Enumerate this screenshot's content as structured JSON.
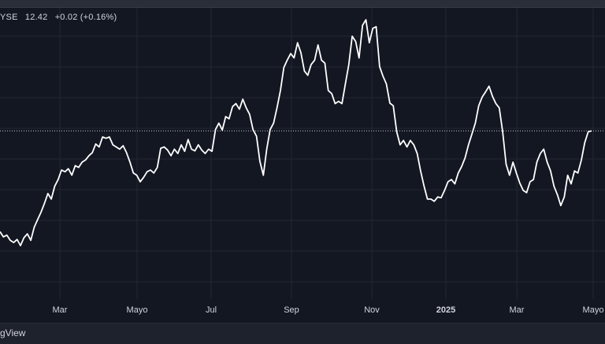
{
  "legend": {
    "exchange": "YSE",
    "price": "12.42",
    "change": "+0.02 (+0.16%)"
  },
  "brand": "gView",
  "chart_data": {
    "type": "line",
    "x_tick_labels": [
      "Mar",
      "Mayo",
      "Jul",
      "Sep",
      "Nov",
      "2025",
      "Mar",
      "Mayo"
    ],
    "reference_line": 12.42,
    "ylim": [
      9.0,
      14.8
    ],
    "grid": true,
    "colors": {
      "line": "#ffffff",
      "background": "#131722",
      "grid": "#232734"
    },
    "series": [
      {
        "values": [
          10.1,
          9.98,
          10.02,
          9.9,
          9.85,
          9.92,
          9.78,
          9.96,
          10.05,
          9.9,
          10.2,
          10.38,
          10.55,
          10.75,
          10.98,
          10.85,
          11.15,
          11.3,
          11.52,
          11.48,
          11.55,
          11.4,
          11.62,
          11.58,
          11.7,
          11.75,
          11.85,
          11.92,
          12.12,
          12.05,
          12.28,
          12.25,
          12.28,
          12.1,
          12.05,
          12.0,
          12.08,
          11.92,
          11.7,
          11.45,
          11.4,
          11.25,
          11.35,
          11.48,
          11.52,
          11.45,
          11.58,
          12.02,
          12.05,
          11.98,
          11.85,
          12.0,
          11.9,
          12.1,
          11.95,
          12.22,
          12.0,
          11.96,
          12.1,
          11.98,
          11.9,
          12.0,
          11.95,
          12.45,
          12.6,
          12.44,
          12.75,
          12.7,
          12.98,
          13.05,
          12.92,
          13.15,
          12.95,
          12.8,
          12.45,
          12.3,
          11.72,
          11.4,
          12.0,
          12.45,
          12.6,
          12.95,
          13.35,
          13.88,
          14.05,
          14.2,
          14.1,
          14.45,
          14.22,
          13.8,
          13.7,
          13.95,
          14.05,
          14.4,
          14.05,
          13.98,
          13.35,
          13.28,
          13.05,
          13.1,
          13.05,
          13.5,
          13.95,
          14.6,
          14.48,
          14.1,
          14.85,
          14.98,
          14.45,
          14.78,
          14.82,
          13.9,
          13.68,
          13.5,
          13.06,
          13.0,
          12.4,
          12.1,
          12.2,
          12.05,
          12.2,
          12.1,
          11.9,
          11.5,
          11.15,
          10.85,
          10.85,
          10.8,
          10.9,
          10.88,
          11.05,
          11.25,
          11.3,
          11.2,
          11.45,
          11.6,
          11.8,
          12.1,
          12.35,
          12.6,
          13.0,
          13.2,
          13.32,
          13.45,
          13.22,
          13.05,
          12.95,
          12.4,
          11.65,
          11.4,
          11.7,
          11.45,
          11.22,
          11.05,
          11.0,
          11.25,
          11.3,
          11.7,
          11.9,
          12.0,
          11.7,
          11.5,
          11.15,
          10.95,
          10.7,
          10.9,
          11.4,
          11.2,
          11.5,
          11.45,
          11.75,
          12.15,
          12.4,
          12.42
        ]
      }
    ]
  }
}
